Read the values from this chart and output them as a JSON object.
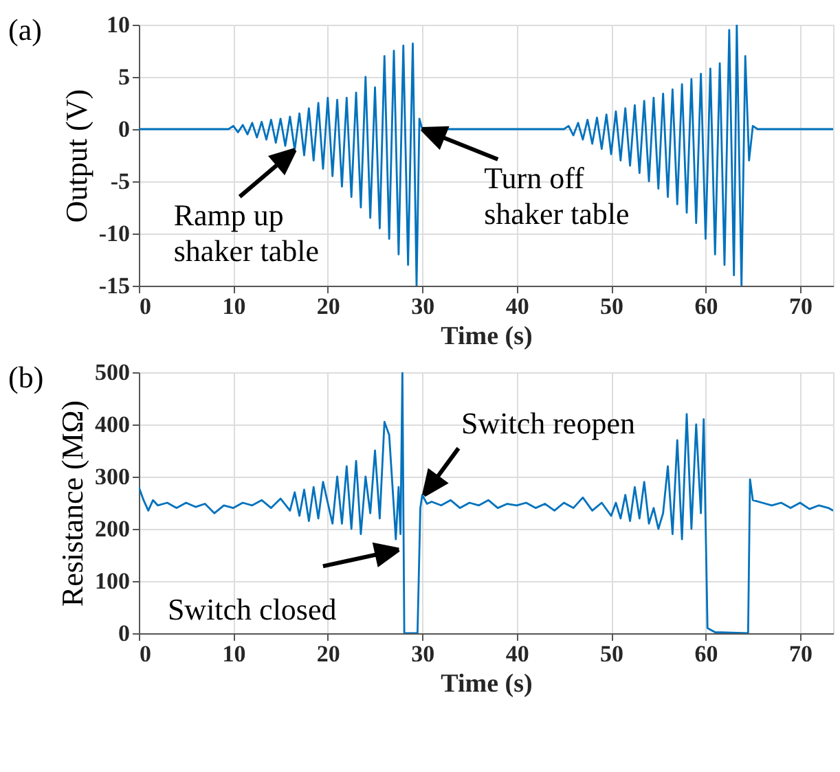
{
  "chart_data": [
    {
      "type": "line",
      "color": "#0072bd",
      "xlabel": "Time (s)",
      "ylabel": "Output (V)",
      "xlim": [
        0,
        73.5
      ],
      "ylim": [
        -15,
        10
      ],
      "xticks": [
        0,
        10,
        20,
        30,
        40,
        50,
        60,
        70
      ],
      "yticks": [
        -15,
        -10,
        -5,
        0,
        5,
        10
      ],
      "grid": true,
      "x": [
        0,
        9.5,
        10,
        10.5,
        11,
        11.5,
        12,
        12.5,
        13,
        13.5,
        14,
        14.5,
        15,
        15.5,
        16,
        16.5,
        17,
        17.5,
        18,
        18.5,
        19,
        19.5,
        20,
        20.5,
        21,
        21.5,
        22,
        22.5,
        23,
        23.5,
        24,
        24.5,
        25,
        25.5,
        26,
        26.5,
        27,
        27.5,
        28,
        28.5,
        29,
        29.4,
        29.7,
        30,
        45,
        45.5,
        46,
        46.5,
        47,
        47.5,
        48,
        48.5,
        49,
        49.5,
        50,
        50.5,
        51,
        51.5,
        52,
        52.5,
        53,
        53.5,
        54,
        54.5,
        55,
        55.5,
        56,
        56.5,
        57,
        57.5,
        58,
        58.5,
        59,
        59.5,
        60,
        60.5,
        61,
        61.5,
        62,
        62.5,
        63,
        63.3,
        63.8,
        64.2,
        64.6,
        65,
        65.5,
        73.5
      ],
      "values": [
        0,
        0,
        0.3,
        -0.3,
        0.4,
        -0.5,
        0.6,
        -0.8,
        0.7,
        -1.0,
        0.9,
        -1.3,
        1.0,
        -1.6,
        1.2,
        -2.0,
        1.5,
        -2.5,
        2.0,
        -3.0,
        2.5,
        -3.8,
        3.0,
        -4.5,
        2.8,
        -5.5,
        3.0,
        -6.5,
        3.5,
        -7.5,
        5.0,
        -8.5,
        4.0,
        -9.5,
        7.0,
        -10.5,
        7.5,
        -12,
        8.0,
        -13,
        8.2,
        -15,
        1.0,
        0,
        0,
        0.3,
        -0.6,
        0.6,
        -1.0,
        0.9,
        -1.4,
        1.1,
        -1.9,
        1.4,
        -2.4,
        1.7,
        -3.0,
        2.0,
        -3.5,
        2.3,
        -4.2,
        2.7,
        -5.0,
        3.0,
        -5.7,
        3.4,
        -6.5,
        3.8,
        -7.2,
        4.3,
        -8.0,
        4.8,
        -9.0,
        5.3,
        -10.5,
        5.8,
        -12,
        6.3,
        -13,
        9.5,
        -14,
        10,
        -15,
        7.0,
        -3.0,
        0.3,
        0,
        0
      ],
      "annotations": [
        "(a)",
        {
          "text": "Ramp up\nshaker table",
          "x": 16.5,
          "y": -2.0
        },
        {
          "text": "Turn off\nshaker table",
          "x": 30,
          "y": 0
        }
      ]
    },
    {
      "type": "line",
      "color": "#0072bd",
      "xlabel": "Time (s)",
      "ylabel": "Resistance (MΩ)",
      "xlim": [
        0,
        73.5
      ],
      "ylim": [
        0,
        500
      ],
      "xticks": [
        0,
        10,
        20,
        30,
        40,
        50,
        60,
        70
      ],
      "yticks": [
        0,
        100,
        200,
        300,
        400,
        500
      ],
      "grid": true,
      "x": [
        0,
        0.5,
        1,
        1.5,
        2,
        3,
        4,
        5,
        6,
        7,
        8,
        9,
        10,
        11,
        12,
        13,
        14,
        15,
        16,
        16.5,
        17,
        17.5,
        18,
        18.5,
        19,
        19.5,
        20,
        20.5,
        21,
        21.5,
        22,
        22.5,
        23,
        23.5,
        24,
        24.5,
        25,
        25.5,
        26,
        26.5,
        27,
        27.2,
        27.5,
        27.7,
        27.9,
        28.1,
        29.5,
        29.8,
        30,
        30.5,
        31,
        32,
        33,
        34,
        35,
        36,
        37,
        38,
        39,
        40,
        41,
        42,
        43,
        44,
        45,
        46,
        47,
        48,
        49,
        50,
        50.5,
        51,
        51.5,
        52,
        52.5,
        53,
        53.5,
        54,
        54.5,
        55,
        55.5,
        56,
        56.5,
        57,
        57.5,
        58,
        58.5,
        59,
        59.5,
        59.8,
        60.2,
        61,
        64.5,
        64.7,
        65,
        66,
        67,
        68,
        69,
        70,
        71,
        72,
        73,
        73.5
      ],
      "values": [
        280,
        255,
        235,
        255,
        245,
        250,
        240,
        250,
        242,
        248,
        230,
        245,
        240,
        250,
        245,
        255,
        240,
        258,
        235,
        270,
        225,
        275,
        215,
        280,
        220,
        290,
        250,
        210,
        300,
        210,
        320,
        200,
        330,
        190,
        300,
        230,
        350,
        220,
        405,
        380,
        240,
        180,
        280,
        190,
        500,
        0,
        0,
        240,
        265,
        248,
        252,
        245,
        255,
        240,
        250,
        245,
        255,
        240,
        248,
        245,
        250,
        240,
        248,
        235,
        250,
        240,
        260,
        235,
        250,
        225,
        250,
        220,
        265,
        215,
        280,
        220,
        290,
        210,
        240,
        200,
        230,
        320,
        190,
        370,
        180,
        420,
        200,
        400,
        230,
        410,
        10,
        2,
        0,
        295,
        255,
        250,
        245,
        250,
        240,
        250,
        238,
        245,
        240,
        235
      ],
      "annotations": [
        "(b)",
        {
          "text": "Switch closed",
          "x": 27.5,
          "y": 160
        },
        {
          "text": "Switch reopen",
          "x": 30.2,
          "y": 265
        }
      ]
    }
  ]
}
